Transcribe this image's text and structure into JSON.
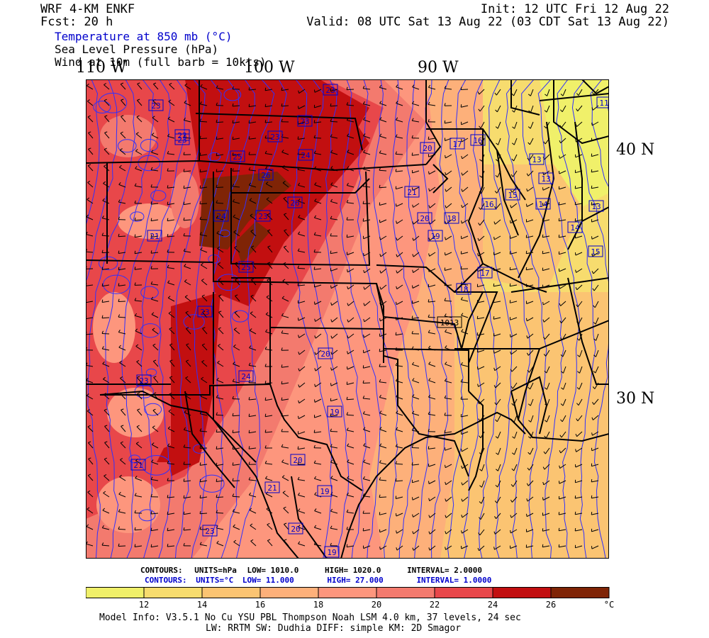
{
  "header": {
    "model": "WRF 4-KM ENKF",
    "forecast": "Fcst:   20 h",
    "init": "Init: 12 UTC Fri 12 Aug 22",
    "valid": "Valid: 08 UTC Sat 13 Aug 22 (03 CDT Sat 13 Aug 22)"
  },
  "fields": {
    "temperature": "Temperature at 850 mb (°C)",
    "pressure": "Sea Level Pressure (hPa)",
    "wind": "Wind at 10m (full barb = 10kts)"
  },
  "lon_labels": [
    "110 W",
    "100 W",
    "90 W"
  ],
  "lat_labels": [
    "40 N",
    "30 N"
  ],
  "temperature_labels": [
    {
      "v": "23"
    },
    {
      "v": "23"
    },
    {
      "v": "21"
    },
    {
      "v": "23"
    },
    {
      "v": "23"
    },
    {
      "v": "23"
    },
    {
      "v": "23"
    },
    {
      "v": "24"
    },
    {
      "v": "25"
    },
    {
      "v": "26"
    },
    {
      "v": "24"
    },
    {
      "v": "23"
    },
    {
      "v": "26"
    },
    {
      "v": "25"
    },
    {
      "v": "21"
    },
    {
      "v": "20"
    },
    {
      "v": "20"
    },
    {
      "v": "19"
    },
    {
      "v": "17"
    },
    {
      "v": "16"
    },
    {
      "v": "18"
    },
    {
      "v": "16"
    },
    {
      "v": "15"
    },
    {
      "v": "13"
    },
    {
      "v": "13"
    },
    {
      "v": "14"
    },
    {
      "v": "13"
    },
    {
      "v": "11"
    },
    {
      "v": "14"
    },
    {
      "v": "15"
    },
    {
      "v": "17"
    },
    {
      "v": "18"
    },
    {
      "v": "23"
    },
    {
      "v": "24"
    },
    {
      "v": "23"
    },
    {
      "v": "20"
    },
    {
      "v": "19"
    },
    {
      "v": "20"
    },
    {
      "v": "19"
    },
    {
      "v": "21"
    },
    {
      "v": "21"
    },
    {
      "v": "20"
    },
    {
      "v": "19"
    },
    {
      "v": "23"
    }
  ],
  "pressure_labels": [
    "1013"
  ],
  "contour_info": {
    "pressure": {
      "label": "CONTOURS:",
      "units": "UNITS=hPa",
      "low": "LOW=   1010.0",
      "high": "HIGH=   1020.0",
      "interval": "INTERVAL=    2.0000"
    },
    "temperature": {
      "label": "CONTOURS:",
      "units": "UNITS=°C",
      "low": "LOW=   11.000",
      "high": "HIGH=   27.000",
      "interval": "INTERVAL=    1.0000"
    }
  },
  "colorbar": {
    "colors": [
      "#f0f06a",
      "#f7dc6e",
      "#fbc472",
      "#fdb07a",
      "#fd967d",
      "#f37a6e",
      "#e8474a",
      "#c20f10",
      "#7f2406"
    ],
    "tick_labels": [
      "12",
      "14",
      "16",
      "18",
      "20",
      "22",
      "24",
      "26"
    ],
    "unit": "°C"
  },
  "model_info": {
    "line1": "Model Info: V3.5.1    No Cu    YSU PBL  Thompson     Noah LSM  4.0 km,  37 levels,   24 sec",
    "line2": "LW: RRTM SW: Dudhia  DIFF: simple KM: 2D Smagor"
  }
}
